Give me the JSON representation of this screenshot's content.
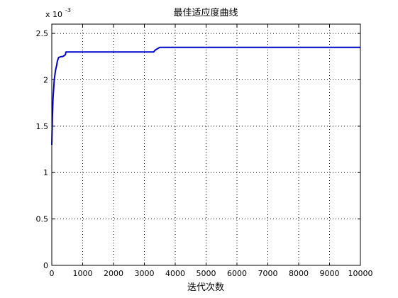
{
  "chart_data": {
    "type": "line",
    "title": "最佳适应度曲线",
    "xlabel": "迭代次数",
    "ylabel": "",
    "y_exponent_label": {
      "base": "x 10",
      "exponent": "-3"
    },
    "xlim": [
      0,
      10000
    ],
    "ylim": [
      0,
      2.6
    ],
    "xticks": [
      0,
      1000,
      2000,
      3000,
      4000,
      5000,
      6000,
      7000,
      8000,
      9000,
      10000
    ],
    "yticks": [
      0,
      0.5,
      1,
      1.5,
      2,
      2.5
    ],
    "grid": "dotted",
    "colors": {
      "series": "#0000cc",
      "axes": "#000000",
      "grid": "#000000",
      "background": "#ffffff"
    },
    "series": [
      {
        "points": [
          [
            0,
            1.3
          ],
          [
            20,
            1.6
          ],
          [
            40,
            1.8
          ],
          [
            60,
            1.9
          ],
          [
            80,
            2.0
          ],
          [
            100,
            2.05
          ],
          [
            120,
            2.1
          ],
          [
            140,
            2.13
          ],
          [
            160,
            2.16
          ],
          [
            180,
            2.2
          ],
          [
            200,
            2.22
          ],
          [
            220,
            2.24
          ],
          [
            300,
            2.25
          ],
          [
            350,
            2.25
          ],
          [
            400,
            2.26
          ],
          [
            440,
            2.27
          ],
          [
            460,
            2.3
          ],
          [
            3300,
            2.3
          ],
          [
            3350,
            2.32
          ],
          [
            3450,
            2.34
          ],
          [
            3500,
            2.35
          ],
          [
            10000,
            2.35
          ]
        ]
      }
    ]
  }
}
